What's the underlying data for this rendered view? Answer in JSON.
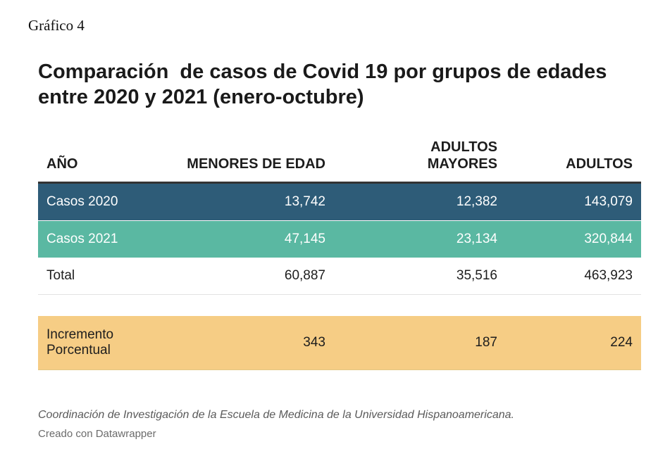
{
  "figure_label": "Gráfico 4",
  "chart_data": {
    "type": "table",
    "title": "Comparación  de casos de Covid 19 por grupos de edades entre 2020 y 2021 (enero-octubre)",
    "columns": [
      "AÑO",
      "MENORES DE EDAD",
      "ADULTOS MAYORES",
      "ADULTOS"
    ],
    "rows": [
      {
        "label": "Casos 2020",
        "values": [
          "13,742",
          "12,382",
          "143,079"
        ],
        "color": "#2e5c78"
      },
      {
        "label": "Casos 2021",
        "values": [
          "47,145",
          "23,134",
          "320,844"
        ],
        "color": "#5ab8a2"
      },
      {
        "label": "Total",
        "values": [
          "60,887",
          "35,516",
          "463,923"
        ],
        "color": "#ffffff"
      },
      {
        "label": "Incremento Porcentual",
        "values": [
          "343",
          "187",
          "224"
        ],
        "color": "#f6cd85"
      }
    ]
  },
  "footer": {
    "source": "Coordinación de Investigación de la Escuela de Medicina de la Universidad Hispanoamericana.",
    "credit": "Creado con Datawrapper"
  }
}
